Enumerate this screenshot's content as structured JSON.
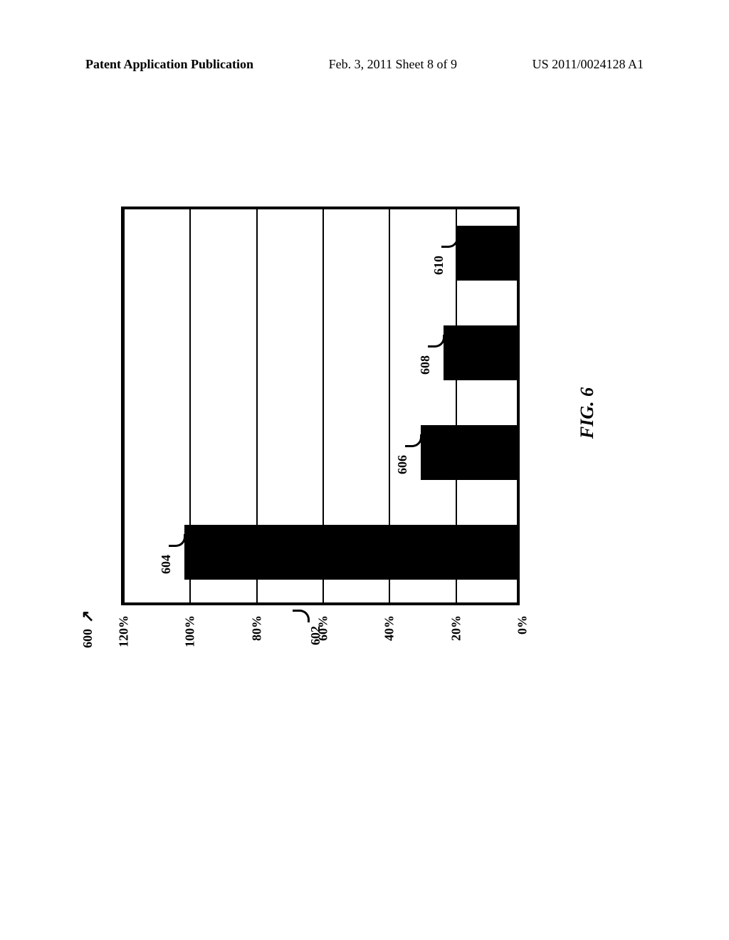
{
  "header": {
    "left": "Patent Application Publication",
    "mid": "Feb. 3, 2011  Sheet 8 of 9",
    "right": "US 2011/0024128 A1"
  },
  "figure": {
    "ref_number": "600",
    "caption": "FIG. 6",
    "chart": {
      "type": "bar",
      "ylim_min": 0,
      "ylim_max": 120,
      "ytick_step": 20,
      "yticks": [
        "0%",
        "20%",
        "40%",
        "60%",
        "80%",
        "100%",
        "120%"
      ],
      "grid_color": "#000000",
      "background_color": "#ffffff",
      "bar_color": "#000000",
      "border_color": "#000000",
      "border_width": 4,
      "label_fontsize": 18,
      "label_fontweight": "bold",
      "bars": [
        {
          "ref": "604",
          "value": 100
        },
        {
          "ref": "606",
          "value": 29
        },
        {
          "ref": "608",
          "value": 22
        },
        {
          "ref": "610",
          "value": 18
        }
      ],
      "axis_ref": "602"
    }
  }
}
